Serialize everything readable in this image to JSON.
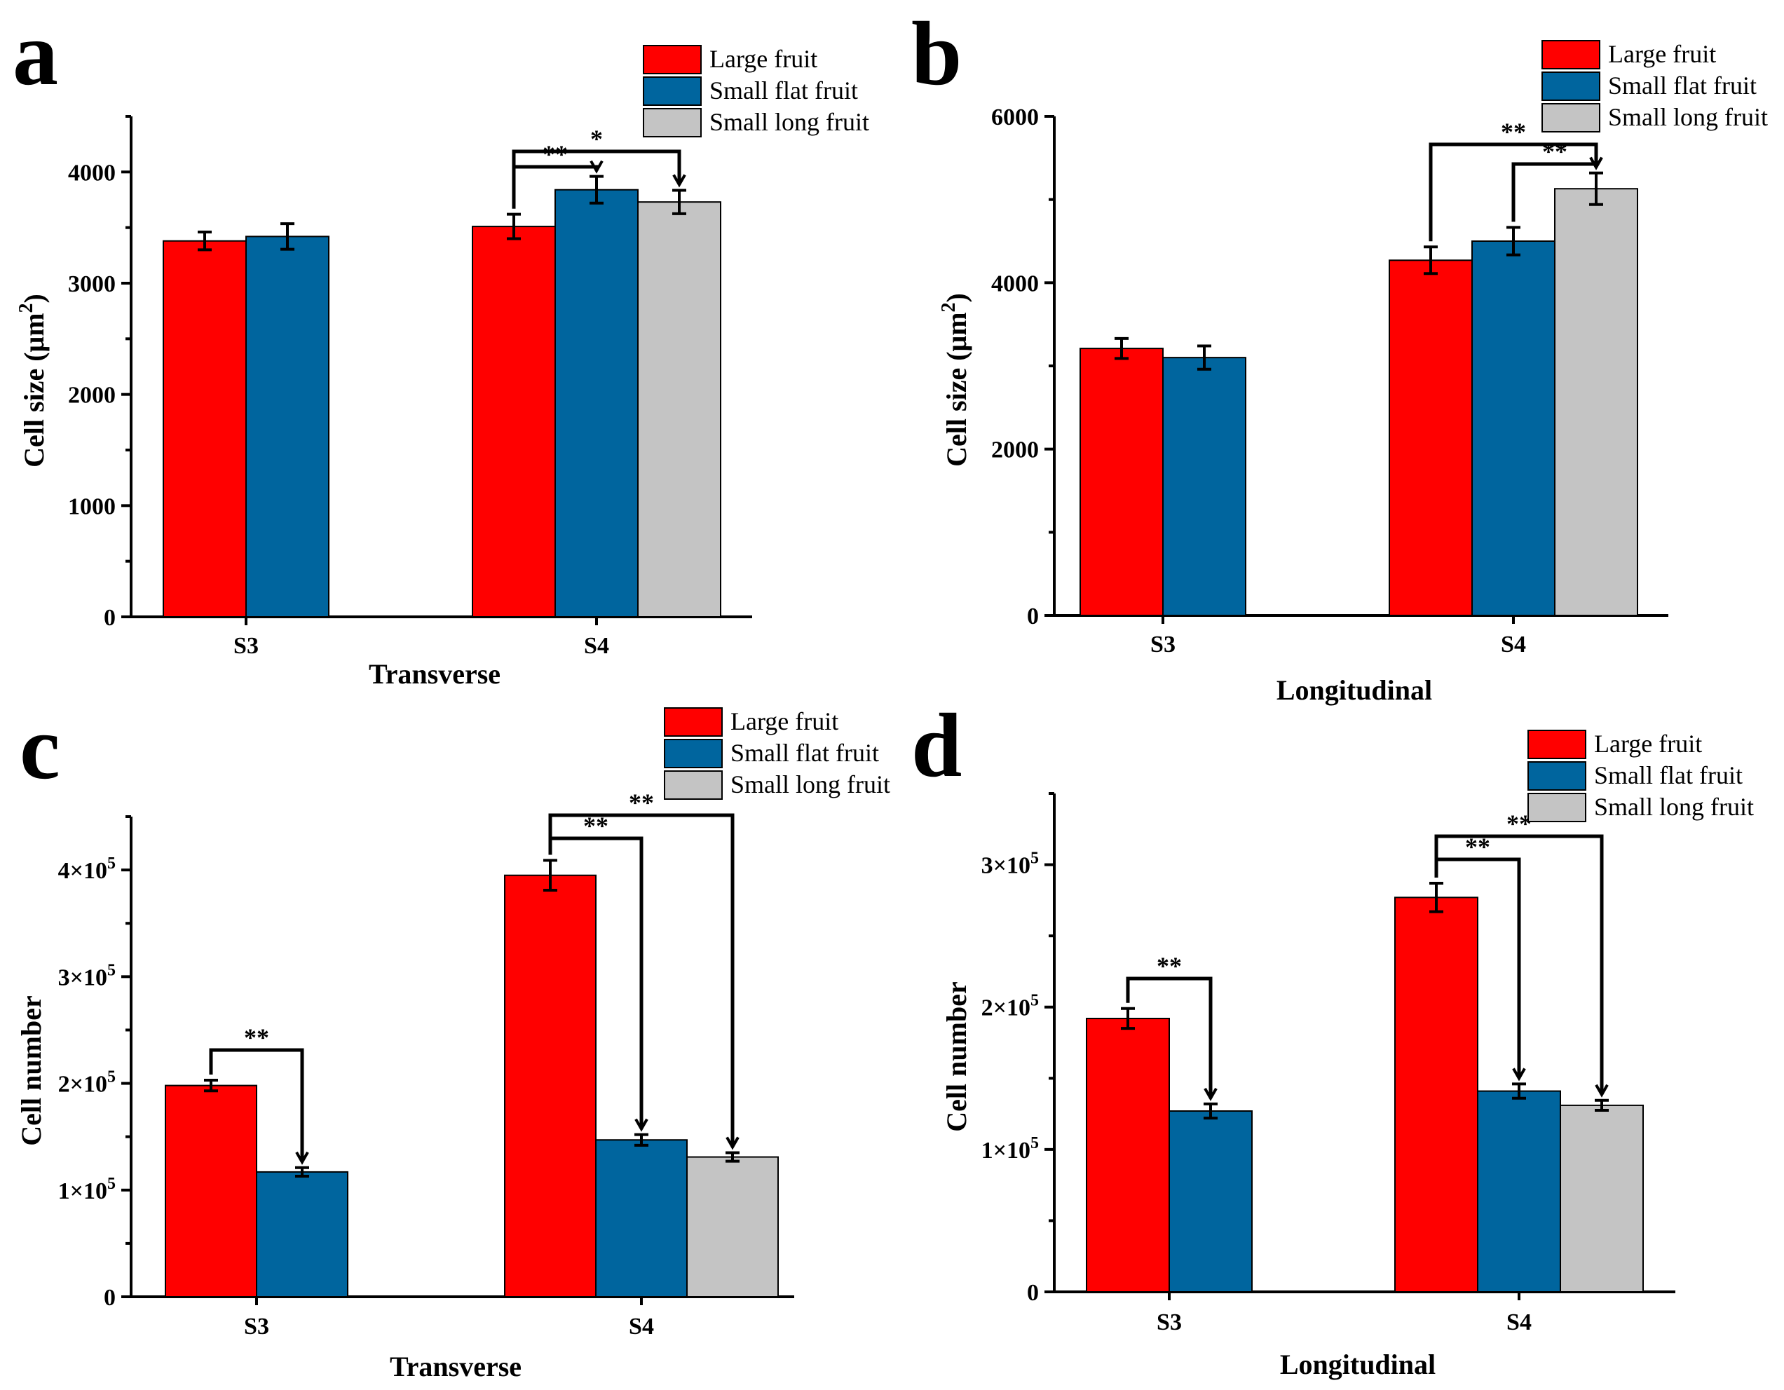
{
  "colors": {
    "large_fruit": "#ff0000",
    "small_flat_fruit": "#00659e",
    "small_long_fruit": "#c4c4c4",
    "axis": "#000000"
  },
  "chart_data": [
    {
      "panel": "a",
      "type": "bar",
      "categories": [
        "S3",
        "S4"
      ],
      "series": [
        {
          "name": "Large fruit",
          "values": [
            3380,
            3510
          ],
          "errors": [
            80,
            110
          ]
        },
        {
          "name": "Small flat fruit",
          "values": [
            3420,
            3840
          ],
          "errors": [
            115,
            120
          ]
        },
        {
          "name": "Small long fruit",
          "values": [
            null,
            3730
          ],
          "errors": [
            null,
            105
          ]
        }
      ],
      "xlabel": "Transverse",
      "ylabel": "Cell size (μm",
      "ylabel_sup": "2",
      "ylabel_close": ")",
      "ylim": [
        0,
        4500
      ],
      "yticks": [
        0,
        1000,
        2000,
        3000,
        4000
      ],
      "ytick_labels": [
        "0",
        "1000",
        "2000",
        "3000",
        "4000"
      ],
      "legend_position": "top-right",
      "significance": [
        {
          "category": "S4",
          "from": "Large fruit",
          "to": "Small flat fruit",
          "label": "**"
        },
        {
          "category": "S4",
          "from": "Large fruit",
          "to": "Small long fruit",
          "label": "*"
        }
      ]
    },
    {
      "panel": "b",
      "type": "bar",
      "categories": [
        "S3",
        "S4"
      ],
      "series": [
        {
          "name": "Large fruit",
          "values": [
            3210,
            4270
          ],
          "errors": [
            120,
            160
          ]
        },
        {
          "name": "Small flat fruit",
          "values": [
            3100,
            4500
          ],
          "errors": [
            140,
            165
          ]
        },
        {
          "name": "Small long fruit",
          "values": [
            null,
            5130
          ],
          "errors": [
            null,
            190
          ]
        }
      ],
      "xlabel": "Longitudinal",
      "ylabel": "Cell size (μm",
      "ylabel_sup": "2",
      "ylabel_close": ")",
      "ylim": [
        0,
        6000
      ],
      "yticks": [
        0,
        2000,
        4000,
        6000
      ],
      "ytick_labels": [
        "0",
        "2000",
        "4000",
        "6000"
      ],
      "legend_position": "top-right",
      "significance": [
        {
          "category": "S4",
          "from": "Large fruit",
          "to": "Small long fruit",
          "label": "**"
        },
        {
          "category": "S4",
          "from": "Small flat fruit",
          "to": "Small long fruit",
          "label": "**"
        }
      ]
    },
    {
      "panel": "c",
      "type": "bar",
      "categories": [
        "S3",
        "S4"
      ],
      "series": [
        {
          "name": "Large fruit",
          "values": [
            198000,
            395000
          ],
          "errors": [
            5000,
            14000
          ]
        },
        {
          "name": "Small flat fruit",
          "values": [
            117000,
            147000
          ],
          "errors": [
            4000,
            5000
          ]
        },
        {
          "name": "Small long fruit",
          "values": [
            null,
            131000
          ],
          "errors": [
            null,
            4000
          ]
        }
      ],
      "xlabel": "Transverse",
      "ylabel": "Cell number",
      "ylim": [
        0,
        450000
      ],
      "yticks": [
        0,
        100000,
        200000,
        300000,
        400000
      ],
      "ytick_labels": [
        {
          "mant": "0",
          "exp": ""
        },
        {
          "mant": "1×10",
          "exp": "5"
        },
        {
          "mant": "2×10",
          "exp": "5"
        },
        {
          "mant": "3×10",
          "exp": "5"
        },
        {
          "mant": "4×10",
          "exp": "5"
        }
      ],
      "legend_position": "top-right",
      "significance": [
        {
          "category": "S3",
          "from": "Large fruit",
          "to": "Small flat fruit",
          "label": "**"
        },
        {
          "category": "S4",
          "from": "Large fruit",
          "to": "Small flat fruit",
          "label": "**"
        },
        {
          "category": "S4",
          "from": "Large fruit",
          "to": "Small long fruit",
          "label": "**"
        }
      ]
    },
    {
      "panel": "d",
      "type": "bar",
      "categories": [
        "S3",
        "S4"
      ],
      "series": [
        {
          "name": "Large fruit",
          "values": [
            192000,
            277000
          ],
          "errors": [
            7000,
            10000
          ]
        },
        {
          "name": "Small flat fruit",
          "values": [
            127000,
            141000
          ],
          "errors": [
            5000,
            5000
          ]
        },
        {
          "name": "Small long fruit",
          "values": [
            null,
            131000
          ],
          "errors": [
            null,
            3500
          ]
        }
      ],
      "xlabel": "Longitudinal",
      "ylabel": "Cell number",
      "ylim": [
        0,
        350000
      ],
      "yticks": [
        0,
        100000,
        200000,
        300000
      ],
      "ytick_labels": [
        {
          "mant": "0",
          "exp": ""
        },
        {
          "mant": "1×10",
          "exp": "5"
        },
        {
          "mant": "2×10",
          "exp": "5"
        },
        {
          "mant": "3×10",
          "exp": "5"
        }
      ],
      "legend_position": "top-right",
      "significance": [
        {
          "category": "S3",
          "from": "Large fruit",
          "to": "Small flat fruit",
          "label": "**"
        },
        {
          "category": "S4",
          "from": "Large fruit",
          "to": "Small flat fruit",
          "label": "**"
        },
        {
          "category": "S4",
          "from": "Large fruit",
          "to": "Small long fruit",
          "label": "**"
        }
      ]
    }
  ]
}
